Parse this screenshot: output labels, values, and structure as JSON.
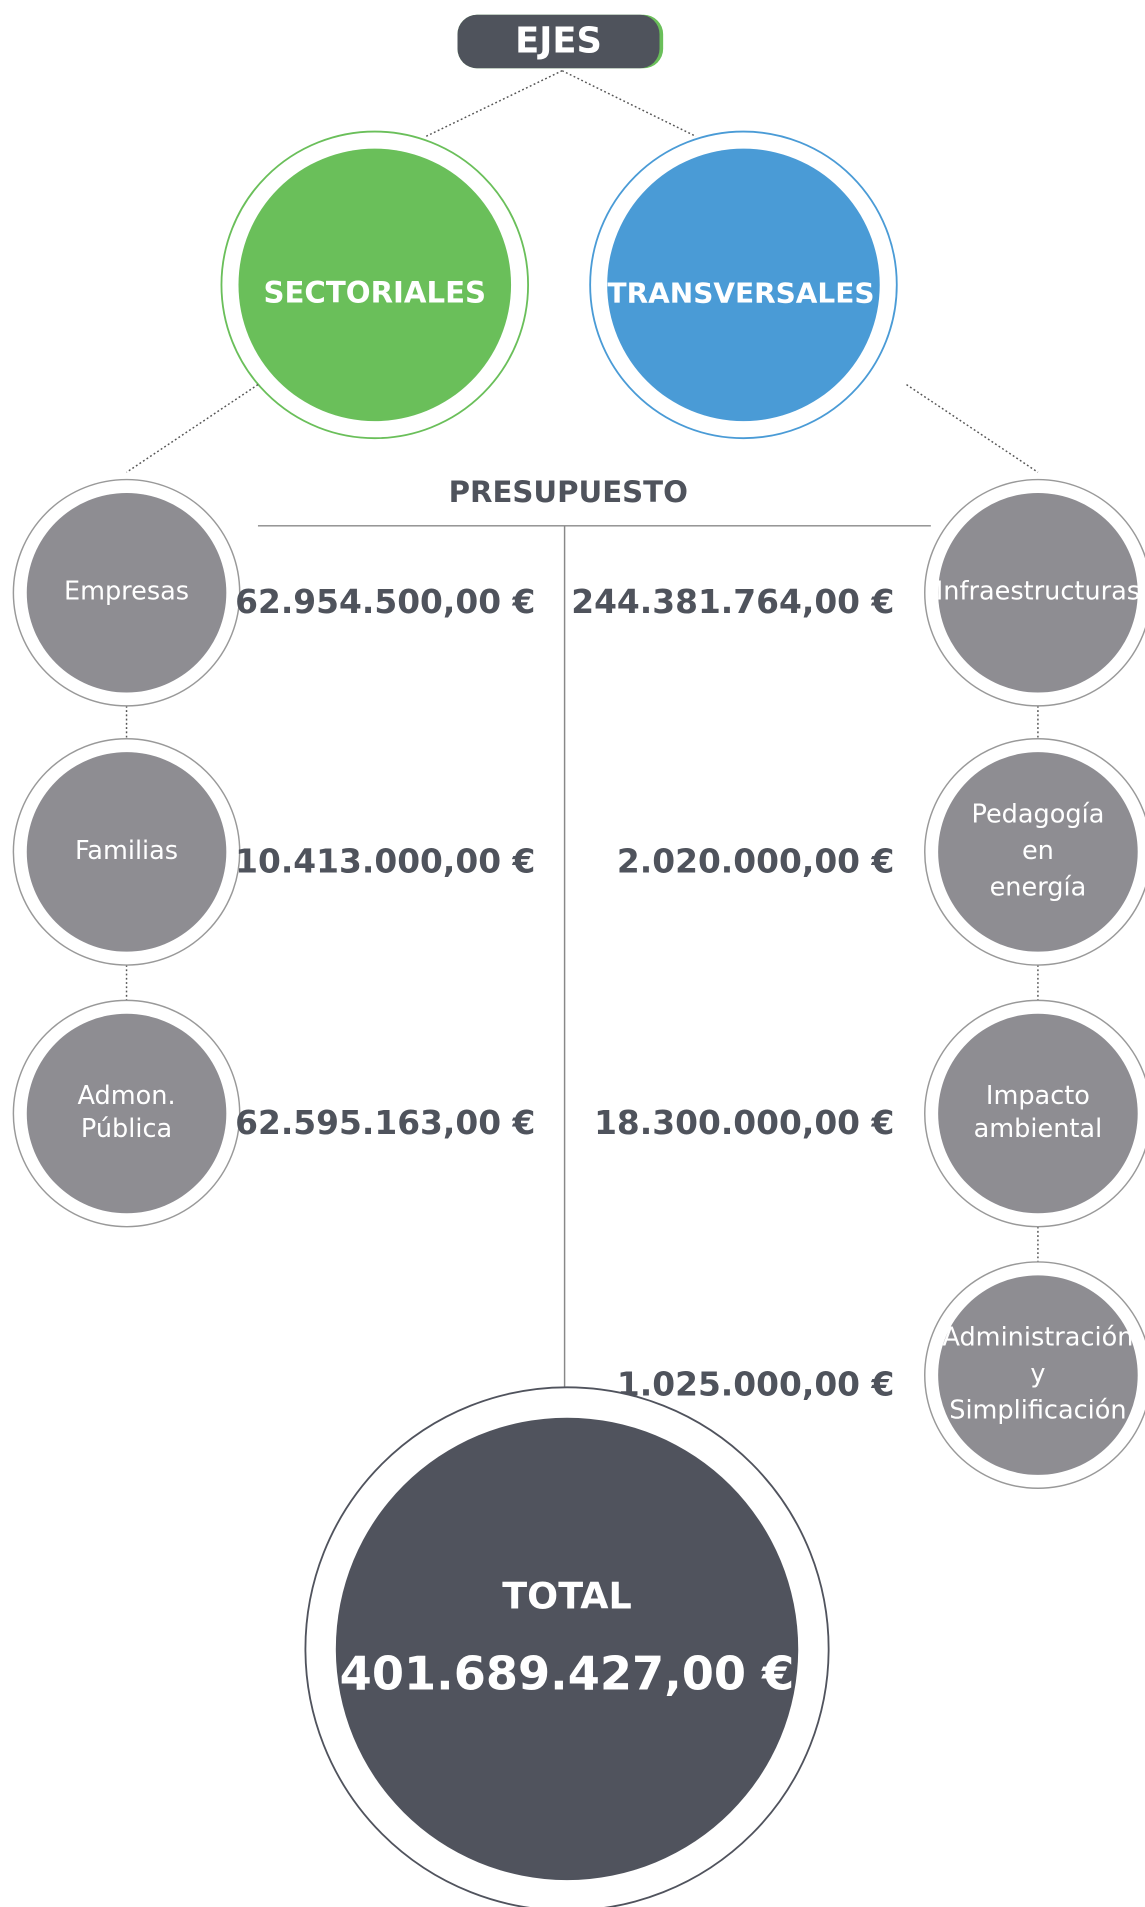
{
  "header": {
    "title": "EJES"
  },
  "branches": [
    {
      "label": "SECTORIALES"
    },
    {
      "label": "TRANSVERSALES"
    }
  ],
  "budget_heading": "PRESUPUESTO",
  "left_items": [
    {
      "label": [
        "Empresas"
      ],
      "amount": "62.954.500,00 €"
    },
    {
      "label": [
        "Familias"
      ],
      "amount": "10.413.000,00 €"
    },
    {
      "label": [
        "Admon.",
        "Pública"
      ],
      "amount": "62.595.163,00 €"
    }
  ],
  "right_items": [
    {
      "label": [
        "Infraestructuras"
      ],
      "amount": "244.381.764,00 €"
    },
    {
      "label": [
        "Pedagogía",
        "en",
        "energía"
      ],
      "amount": "2.020.000,00 €"
    },
    {
      "label": [
        "Impacto",
        "ambiental"
      ],
      "amount": "18.300.000,00 €"
    },
    {
      "label": [
        "Administración",
        "y",
        "Simplificación"
      ],
      "amount": "1.025.000,00 €"
    }
  ],
  "total": {
    "label": "TOTAL",
    "amount": "401.689.427,00 €"
  }
}
